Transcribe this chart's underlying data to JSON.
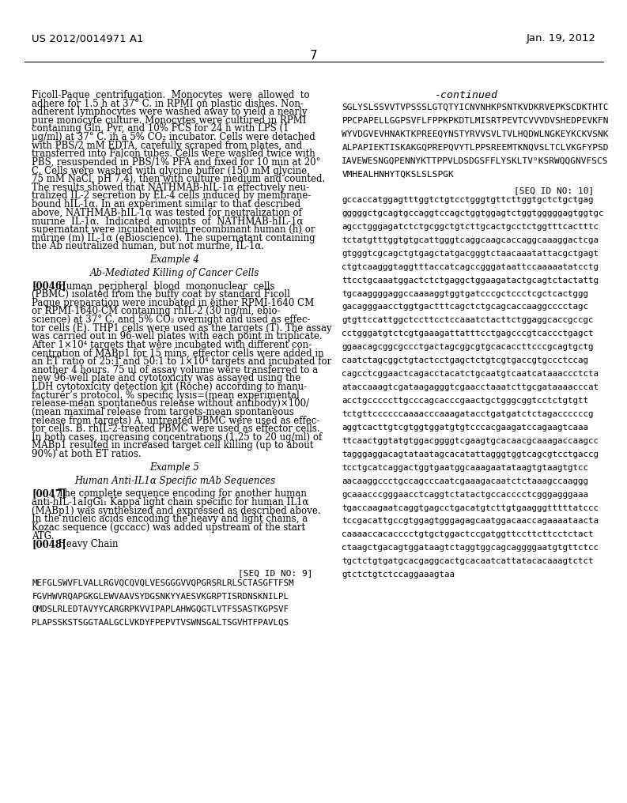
{
  "header_left": "US 2012/0014971 A1",
  "header_right": "Jan. 19, 2012",
  "page_number": "7",
  "bg_color": "#ffffff",
  "text_color": "#000000",
  "left_column_lines": [
    {
      "text": "Ficoll-Paque  centrifugation.  Monocytes  were  allowed  to",
      "type": "body"
    },
    {
      "text": "adhere for 1.5 h at 37° C. in RPMI on plastic dishes. Non-",
      "type": "body"
    },
    {
      "text": "adherent lymphocytes were washed away to yield a nearly",
      "type": "body"
    },
    {
      "text": "pure monocyte culture. Monocytes were cultured in RPMI",
      "type": "body"
    },
    {
      "text": "containing Gln, Pyr, and 10% FCS for 24 h with LPS (1",
      "type": "body"
    },
    {
      "text": "μg/ml) at 37° C. in a 5% CO₂ incubator. Cells were detached",
      "type": "body"
    },
    {
      "text": "with PBS/2 mM EDTA, carefully scraped from plates, and",
      "type": "body"
    },
    {
      "text": "transferred into Falcon tubes. Cells were washed twice with",
      "type": "body"
    },
    {
      "text": "PBS, resuspended in PBS/1% PFA and fixed for 10 min at 20°",
      "type": "body"
    },
    {
      "text": "C. Cells were washed with glycine buffer (150 mM glycine,",
      "type": "body"
    },
    {
      "text": "75 mM NaCl, pH 7.4), then with culture medium and counted.",
      "type": "body"
    },
    {
      "text": "The results showed that NATHMAB-hIL-1α effectively neu-",
      "type": "body"
    },
    {
      "text": "tralized IL-2 secretion by EL-4 cells induced by membrane-",
      "type": "body"
    },
    {
      "text": "bound hIL-1α. In an experiment similar to that described",
      "type": "body"
    },
    {
      "text": "above, NATHMAB-hIL-1α was tested for neutralization of",
      "type": "body"
    },
    {
      "text": "murine  IL-1α.  Indicated  amounts  of  NATHMAB-hIL-1α",
      "type": "body"
    },
    {
      "text": "supernatant were incubated with recombinant human (h) or",
      "type": "body"
    },
    {
      "text": "murine (m) IL-1α (eBioscience). The supernatant containing",
      "type": "body"
    },
    {
      "text": "the Ab neutralized human, but not murine, IL-1α.",
      "type": "body"
    },
    {
      "text": "",
      "type": "space"
    },
    {
      "text": "Example 4",
      "type": "center"
    },
    {
      "text": "",
      "type": "space"
    },
    {
      "text": "Ab-Mediated Killing of Cancer Cells",
      "type": "center"
    },
    {
      "text": "",
      "type": "space"
    },
    {
      "text": "[0046]",
      "type": "para_start",
      "rest": "  Human  peripheral  blood  mononuclear  cells"
    },
    {
      "text": "(PBMC) isolated from the buffy coat by standard Ficoll",
      "type": "body"
    },
    {
      "text": "Paque preparation were incubated in either RPMI-1640 CM",
      "type": "body"
    },
    {
      "text": "or RPMI-1640-CM containing rhIL-2 (30 ng/ml, ebio-",
      "type": "body"
    },
    {
      "text": "science) at 37° C. and 5% CO₂ overnight and used as effec-",
      "type": "body"
    },
    {
      "text": "tor cells (E). THP1 cells were used as the targets (T). The assay",
      "type": "body"
    },
    {
      "text": "was carried out in 96-well plates with each point in triplicate.",
      "type": "body"
    },
    {
      "text": "After 1×10⁴ targets that were incubated with different con-",
      "type": "body"
    },
    {
      "text": "centration of MABp1 for 15 mins, effector cells were added in",
      "type": "body"
    },
    {
      "text": "an ET ratio of 25:1 and 50:1 to 1×10⁴ targets and incubated for",
      "type": "body"
    },
    {
      "text": "another 4 hours. 75 ul of assay volume were transferred to a",
      "type": "body"
    },
    {
      "text": "new 96-well plate and cytotoxicity was assayed using the",
      "type": "body"
    },
    {
      "text": "LDH cytotoxicity detection kit (Roche) according to manu-",
      "type": "body"
    },
    {
      "text": "facturer’s protocol. % specific lysis=(mean experimental",
      "type": "body"
    },
    {
      "text": "release-mean spontaneous release without antibody)×100/",
      "type": "body"
    },
    {
      "text": "(mean maximal release from targets-mean spontaneous",
      "type": "body"
    },
    {
      "text": "release from targets) A. untreated PBMC were used as effec-",
      "type": "body"
    },
    {
      "text": "tor cells. B. rhIL-2-treated PBMC were used as effector cells.",
      "type": "body"
    },
    {
      "text": "In both cases, increasing concentrations (1.25 to 20 ug/ml) of",
      "type": "body"
    },
    {
      "text": "MABp1 resulted in increased target cell killing (up to about",
      "type": "body"
    },
    {
      "text": "90%) at both ET ratios.",
      "type": "body"
    },
    {
      "text": "",
      "type": "space"
    },
    {
      "text": "Example 5",
      "type": "center"
    },
    {
      "text": "",
      "type": "space"
    },
    {
      "text": "Human Anti-IL1α Specific mAb Sequences",
      "type": "center"
    },
    {
      "text": "",
      "type": "space"
    },
    {
      "text": "[0047]",
      "type": "para_start",
      "rest": "  The complete sequence encoding for another human"
    },
    {
      "text": "anti-hIL-1aIgGi₁ Kappa light chain specific for human IL1α",
      "type": "body"
    },
    {
      "text": "(MABp1) was synthesized and expressed as described above.",
      "type": "body"
    },
    {
      "text": "In the nucleic acids encoding the heavy and light chains, a",
      "type": "body"
    },
    {
      "text": "Kozac sequence (gccacc) was added upstream of the start",
      "type": "body"
    },
    {
      "text": "ATG.",
      "type": "body"
    },
    {
      "text": "[0048]",
      "type": "para_start",
      "rest": "  Heavy Chain"
    },
    {
      "text": "",
      "type": "space_large"
    },
    {
      "text": "",
      "type": "space_large"
    },
    {
      "text": "[SEQ ID NO: 9]",
      "type": "seq_label_right"
    },
    {
      "text": "MEFGLSWVFLVALLRGVQCQVQLVESGGGVVQPGRSRLRLSCTASGFTFSM",
      "type": "mono"
    },
    {
      "text": "",
      "type": "space"
    },
    {
      "text": "FGVHWVRQAPGKGLEWVAAVSYDGSNKYYAESVKGRPTISRDNSKNILPL",
      "type": "mono"
    },
    {
      "text": "",
      "type": "space"
    },
    {
      "text": "QMDSLRLEDTAVYYCARGRPKVVIPAPLAHWGQGTLVTFSSASTKGPSVF",
      "type": "mono"
    },
    {
      "text": "",
      "type": "space"
    },
    {
      "text": "PLAPSSKSTSGGTAALGCLVKDYFPEPVTVSWNSGALTSGVHTFPAVLQS",
      "type": "mono"
    }
  ],
  "continued_label": "-continued",
  "protein_seqs": [
    "SGLYSLSSVVTVPSSSLGTQTYICNVNHKPSNTKVDKRVEPKSCDKTHTC",
    "PPCPAPELLGGPSVFLFPPKPKDTLMISRTPEVTCVVVDVSHEDPEVKFN",
    "WYVDGVEVHNAKTKPREEQYNSTYRVVSVLTVLHQDWLNGKEYKCKVSNK",
    "ALPAPIEKTISKAKGQPREPQVYTLPPSREEMTKNQVSLTCLVKGFYPSD",
    "IAVEWESNGQPENNYKTTPPVLDSDGSFFLYSKLTVᴰKSRWQQGNVFSCS",
    "VMHEALHNHYTQKSLSLSPGK"
  ],
  "dna_seqs": [
    "gccaccatggagtttggtctgtcctgggtgttcttggtgctctgctgag",
    "gggggctgcagtgccaggtccagctggtggagtctggtgggggagtggtgc",
    "agcctgggagatctctgcggctgtcttgcactgcctctggtttcactttc",
    "tctatgtttggtgtgcattgggtcaggcaagcaccaggcaaaggactcga",
    "gtgggtcgcagctgtgagctatgacgggtctaacaaatattacgctgagt",
    "ctgtcaagggtaggtttaccatcagccgggataattccaaaaatatcctg",
    "ttcctgcaaatggactctctgaggctggaagatactgcagtctactattg",
    "tgcaaggggaggccaaaaggtggtgatcccgctccctcgctcactggg",
    "gacagggaacctggtgactttcagctctgcagcaccaaggcccctagc",
    "gtgttccattggctccttcctccaaatctacttctggaggcaccgccgc",
    "cctgggatgtctcgtgaaagattatttcctgagcccgtcaccctgagct",
    "ggaacagcggcgccctgactagcggcgtgcacaccttcccgcagtgctg",
    "caatctagcggctgtactcctgagctctgtcgtgaccgtgccctccag",
    "cagcctcggaactcagacctacatctgcaatgtcaatcataaaccctcta",
    "ataccaaagtcgataagagggtcgaacctaaatcttgcgataaaacccat",
    "acctgcccccttgcccagcacccgaactgctgggcggtcctctgtgtt",
    "tctgttccccccaaaacccaaagatacctgatgatctctagaccccccg",
    "aggtcacttgtcgtggtggatgtgtcccacgaagatccagaagtcaaa",
    "ttcaactggtatgtggacggggtcgaagtgcacaacgcaaagaccaagcc",
    "tagggaggacagtataatagcacatattagggtggtcagcgtcctgaccg",
    "tcctgcatcaggactggtgaatggcaaagaatataagtgtaagtgtcc",
    "aacaaggccctgccagcccaatcgaaagacaatctctaaagccaaggg",
    "gcaaacccgggaacctcaggtctatactgccacccctcgggagggaaa",
    "tgaccaagaatcaggtgagcctgacatgtcttgtgaagggtttttatccc",
    "tccgacattgccgtggagtgggagagcaatggacaaccagaaaataacta",
    "caaaaccacacccctgtgctggactccgatggttccttcttcctctact",
    "ctaagctgacagtggataagtctaggtggcagcaggggaatgtgttctcc",
    "tgctctgtgatgcacgaggcactgcacaatcattatacacaaagtctct",
    "gtctctgtctccaggaaagtaa"
  ]
}
